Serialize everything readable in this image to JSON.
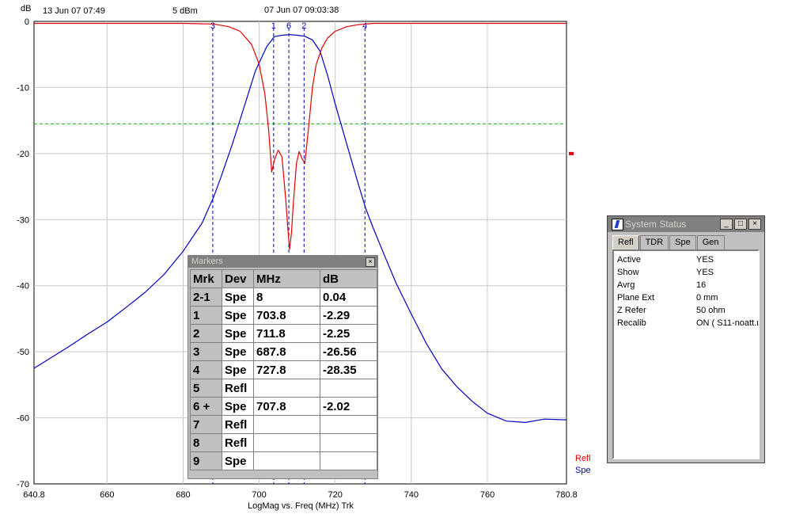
{
  "header": {
    "ref_date": "13 Jun 07  07:49",
    "power": "5 dBm",
    "timestamp": "07 Jun 07  09:03:38",
    "y_unit": "dB"
  },
  "chart_data": {
    "type": "line",
    "xlabel": "LogMag vs. Freq (MHz)  Trk",
    "ylabel": "dB",
    "xlim": [
      640.8,
      780.8
    ],
    "ylim": [
      -70,
      0
    ],
    "x_ticks": [
      "640.8",
      "660",
      "680",
      "700",
      "720",
      "740",
      "760",
      "780.8"
    ],
    "x_tick_values": [
      640.8,
      660,
      680,
      700,
      720,
      740,
      760,
      780.8
    ],
    "y_ticks": [
      "0",
      "-10",
      "-20",
      "-30",
      "-40",
      "-50",
      "-60",
      "-70"
    ],
    "y_tick_values": [
      0,
      -10,
      -20,
      -30,
      -40,
      -50,
      -60,
      -70
    ],
    "grid": true,
    "limit_line_db": -15.5,
    "ref_marker_db": -20,
    "legend": [
      "Refl",
      "Spe"
    ],
    "colors": {
      "Refl": "#e00000",
      "Spe": "#0000c0",
      "limit": "#00c000",
      "marker_line": "#0000c0"
    },
    "series": [
      {
        "name": "Spe",
        "x": [
          640.8,
          645,
          650,
          655,
          660,
          665,
          670,
          675,
          680,
          685,
          688,
          690,
          693,
          696,
          699,
          702,
          704,
          706,
          708,
          710,
          712,
          714,
          716,
          718,
          720,
          723,
          726,
          728,
          730,
          733,
          736,
          740,
          744,
          748,
          752,
          756,
          760,
          765,
          770,
          775,
          780.8
        ],
        "y": [
          -52.5,
          -51,
          -49.2,
          -47.3,
          -45.5,
          -43.3,
          -41,
          -38.3,
          -34.8,
          -30.5,
          -26.6,
          -23.5,
          -18.5,
          -13,
          -7.5,
          -3.8,
          -2.3,
          -2.1,
          -2.0,
          -2.1,
          -2.25,
          -2.8,
          -4.5,
          -8.2,
          -12.5,
          -18.5,
          -24.5,
          -28.3,
          -31.3,
          -35.5,
          -39.6,
          -44.3,
          -48.8,
          -52.6,
          -55.3,
          -57.5,
          -59.3,
          -60.5,
          -60.7,
          -60.2,
          -60.3
        ]
      },
      {
        "name": "Refl",
        "x": [
          640.8,
          660,
          680,
          688,
          692,
          695,
          698,
          700,
          701.5,
          702.5,
          703.3,
          704,
          705,
          706,
          707,
          707.5,
          708,
          708.5,
          709,
          709.8,
          710.5,
          711.2,
          712,
          713,
          714,
          715,
          716.5,
          718,
          720,
          723,
          726,
          730,
          740,
          760,
          780.8
        ],
        "y": [
          -0.3,
          -0.3,
          -0.3,
          -0.4,
          -0.8,
          -1.5,
          -3.5,
          -6.5,
          -11,
          -16.5,
          -22.8,
          -21,
          -19.5,
          -20.5,
          -27,
          -31,
          -34.5,
          -32,
          -27.5,
          -21.5,
          -19.7,
          -20.7,
          -21.5,
          -16,
          -10,
          -6.5,
          -4,
          -2.5,
          -1.5,
          -0.8,
          -0.5,
          -0.3,
          -0.3,
          -0.3,
          -0.3
        ]
      }
    ],
    "markers": [
      {
        "label": "3",
        "x": 687.8
      },
      {
        "label": "1",
        "x": 703.8
      },
      {
        "label": "6",
        "x": 707.8
      },
      {
        "label": "2",
        "x": 711.8
      },
      {
        "label": "4",
        "x": 727.8
      }
    ]
  },
  "markers_window": {
    "title": "Markers",
    "close": "×",
    "headers": [
      "Mrk",
      "Dev",
      "MHz",
      "dB"
    ],
    "rows": [
      [
        "2-1",
        "Spe",
        "8",
        "0.04"
      ],
      [
        "1",
        "Spe",
        "703.8",
        "-2.29"
      ],
      [
        "2",
        "Spe",
        "711.8",
        "-2.25"
      ],
      [
        "3",
        "Spe",
        "687.8",
        "-26.56"
      ],
      [
        "4",
        "Spe",
        "727.8",
        "-28.35"
      ],
      [
        "5",
        "Refl",
        "",
        ""
      ],
      [
        "6 +",
        "Spe",
        "707.8",
        "-2.02"
      ],
      [
        "7",
        "Refl",
        "",
        ""
      ],
      [
        "8",
        "Refl",
        "",
        ""
      ],
      [
        "9",
        "Spe",
        "",
        ""
      ]
    ]
  },
  "system_status": {
    "title": "System Status",
    "min": "_",
    "max": "□",
    "close": "×",
    "tabs": [
      "Refl",
      "TDR",
      "Spe",
      "Gen"
    ],
    "rows": [
      {
        "key": "Active",
        "value": "YES"
      },
      {
        "key": "Show",
        "value": "YES"
      },
      {
        "key": "Avrg",
        "value": "16"
      },
      {
        "key": "Plane Ext",
        "value": "0 mm"
      },
      {
        "key": "Z Refer",
        "value": "50 ohm"
      },
      {
        "key": "Recalib",
        "value": "ON ( S11-noatt.r"
      }
    ]
  }
}
